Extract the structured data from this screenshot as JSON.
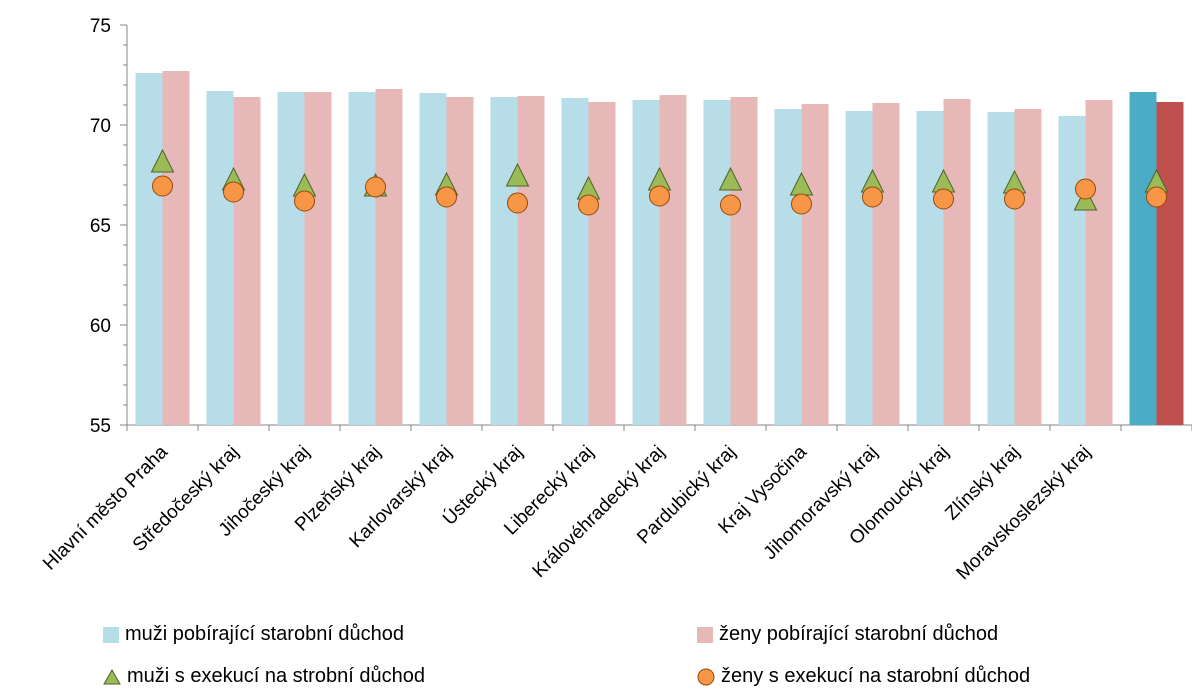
{
  "chart_data": {
    "type": "bar",
    "categories": [
      "Hlavní město Praha",
      "Středočeský kraj",
      "Jihočeský kraj",
      "Plzeňský kraj",
      "Karlovarský kraj",
      "Ústecký kraj",
      "Liberecký kraj",
      "Královéhradecký kraj",
      "Pardubický kraj",
      "Kraj Vysočina",
      "Jihomoravský kraj",
      "Olomoucký kraj",
      "Zlínský kraj",
      "Moravskoslezský kraj",
      ""
    ],
    "ylim": [
      55,
      75
    ],
    "yticks": [
      55,
      60,
      65,
      70,
      75
    ],
    "grid": false,
    "legend_position": "bottom",
    "series": [
      {
        "name": "muži pobírající starobní důchod",
        "kind": "bar",
        "color": "#b7dde8",
        "highlight_color": "#4bacc6",
        "values": [
          72.6,
          71.7,
          71.65,
          71.65,
          71.6,
          71.4,
          71.35,
          71.25,
          71.25,
          70.8,
          70.7,
          70.7,
          70.65,
          70.45,
          71.65
        ]
      },
      {
        "name": "ženy pobírající starobní důchod",
        "kind": "bar",
        "color": "#e6b9b8",
        "highlight_color": "#c0504d",
        "values": [
          72.7,
          71.4,
          71.65,
          71.8,
          71.4,
          71.45,
          71.15,
          71.5,
          71.4,
          71.05,
          71.1,
          71.3,
          70.8,
          71.25,
          71.15
        ]
      },
      {
        "name": "muži s exekucí na strobní důchod",
        "kind": "triangle",
        "color": "#9bbb59",
        "values": [
          68.1,
          67.2,
          66.9,
          66.9,
          66.95,
          67.4,
          66.75,
          67.2,
          67.2,
          66.95,
          67.1,
          67.1,
          67.05,
          66.2,
          67.1
        ]
      },
      {
        "name": "ženy s exekucí na starobní důchod",
        "kind": "circle",
        "color": "#f79646",
        "values": [
          66.95,
          66.65,
          66.2,
          66.9,
          66.4,
          66.1,
          66.0,
          66.45,
          66.0,
          66.05,
          66.4,
          66.3,
          66.3,
          66.8,
          66.4
        ]
      }
    ]
  }
}
